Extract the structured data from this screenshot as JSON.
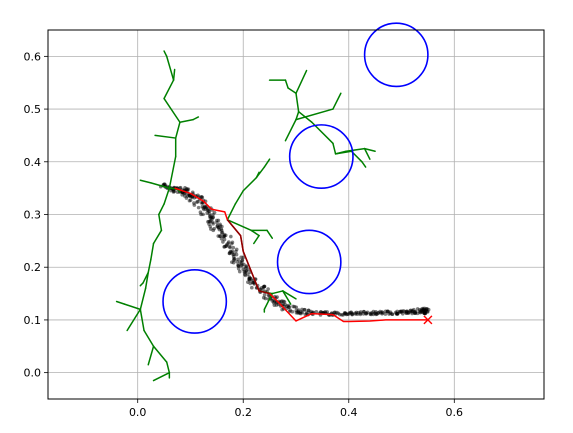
{
  "chart_data": {
    "type": "scatter",
    "title": "",
    "xlabel": "",
    "ylabel": "",
    "xlim": [
      -0.17,
      0.77
    ],
    "ylim": [
      -0.05,
      0.65
    ],
    "grid": true,
    "legend": "none",
    "x_ticks": [
      {
        "value": 0.0,
        "label": "0.0"
      },
      {
        "value": 0.2,
        "label": "0.2"
      },
      {
        "value": 0.4,
        "label": "0.4"
      },
      {
        "value": 0.6,
        "label": "0.6"
      }
    ],
    "y_ticks": [
      {
        "value": 0.0,
        "label": "0.0"
      },
      {
        "value": 0.1,
        "label": "0.1"
      },
      {
        "value": 0.2,
        "label": "0.2"
      },
      {
        "value": 0.3,
        "label": "0.3"
      },
      {
        "value": 0.4,
        "label": "0.4"
      },
      {
        "value": 0.5,
        "label": "0.5"
      },
      {
        "value": 0.6,
        "label": "0.6"
      }
    ],
    "colors": {
      "obstacle": "#0000ff",
      "tree": "#008000",
      "path": "#ff0000",
      "path_dark": "#8b0000",
      "particles": "#000000",
      "goal": "#ff0000",
      "grid": "#b0b0b0"
    },
    "obstacles": [
      {
        "x": 0.108,
        "y": 0.135,
        "r": 0.06
      },
      {
        "x": 0.325,
        "y": 0.21,
        "r": 0.06
      },
      {
        "x": 0.348,
        "y": 0.41,
        "r": 0.06
      },
      {
        "x": 0.49,
        "y": 0.603,
        "r": 0.06
      }
    ],
    "tree_edges": [
      [
        [
          0.06,
          0.35
        ],
        [
          0.075,
          0.348
        ]
      ],
      [
        [
          0.075,
          0.348
        ],
        [
          0.08,
          0.343
        ]
      ],
      [
        [
          0.06,
          0.35
        ],
        [
          0.072,
          0.41
        ]
      ],
      [
        [
          0.072,
          0.41
        ],
        [
          0.072,
          0.445
        ]
      ],
      [
        [
          0.072,
          0.445
        ],
        [
          0.033,
          0.45
        ]
      ],
      [
        [
          0.072,
          0.445
        ],
        [
          0.08,
          0.475
        ]
      ],
      [
        [
          0.08,
          0.475
        ],
        [
          0.105,
          0.48
        ]
      ],
      [
        [
          0.105,
          0.48
        ],
        [
          0.115,
          0.485
        ]
      ],
      [
        [
          0.08,
          0.475
        ],
        [
          0.05,
          0.52
        ]
      ],
      [
        [
          0.05,
          0.52
        ],
        [
          0.068,
          0.555
        ]
      ],
      [
        [
          0.068,
          0.555
        ],
        [
          0.07,
          0.575
        ]
      ],
      [
        [
          0.068,
          0.555
        ],
        [
          0.055,
          0.6
        ]
      ],
      [
        [
          0.055,
          0.6
        ],
        [
          0.05,
          0.61
        ]
      ],
      [
        [
          0.06,
          0.35
        ],
        [
          0.025,
          0.36
        ]
      ],
      [
        [
          0.025,
          0.36
        ],
        [
          0.005,
          0.365
        ]
      ],
      [
        [
          0.06,
          0.35
        ],
        [
          0.05,
          0.32
        ]
      ],
      [
        [
          0.05,
          0.32
        ],
        [
          0.04,
          0.3
        ]
      ],
      [
        [
          0.04,
          0.3
        ],
        [
          0.045,
          0.27
        ]
      ],
      [
        [
          0.045,
          0.27
        ],
        [
          0.03,
          0.245
        ]
      ],
      [
        [
          0.03,
          0.245
        ],
        [
          0.025,
          0.215
        ]
      ],
      [
        [
          0.025,
          0.215
        ],
        [
          0.02,
          0.19
        ]
      ],
      [
        [
          0.02,
          0.19
        ],
        [
          0.01,
          0.17
        ]
      ],
      [
        [
          0.01,
          0.17
        ],
        [
          0.005,
          0.165
        ]
      ],
      [
        [
          0.02,
          0.19
        ],
        [
          0.015,
          0.16
        ]
      ],
      [
        [
          0.015,
          0.16
        ],
        [
          0.005,
          0.12
        ]
      ],
      [
        [
          0.005,
          0.12
        ],
        [
          -0.025,
          0.13
        ]
      ],
      [
        [
          -0.025,
          0.13
        ],
        [
          -0.04,
          0.135
        ]
      ],
      [
        [
          0.005,
          0.12
        ],
        [
          -0.02,
          0.08
        ]
      ],
      [
        [
          0.005,
          0.12
        ],
        [
          0.012,
          0.08
        ]
      ],
      [
        [
          0.012,
          0.08
        ],
        [
          0.03,
          0.05
        ]
      ],
      [
        [
          0.03,
          0.05
        ],
        [
          0.02,
          0.015
        ]
      ],
      [
        [
          0.03,
          0.05
        ],
        [
          0.055,
          0.02
        ]
      ],
      [
        [
          0.055,
          0.02
        ],
        [
          0.06,
          0.0
        ]
      ],
      [
        [
          0.06,
          0.0
        ],
        [
          0.03,
          -0.015
        ]
      ],
      [
        [
          0.06,
          0.0
        ],
        [
          0.06,
          -0.01
        ]
      ],
      [
        [
          0.17,
          0.29
        ],
        [
          0.185,
          0.32
        ]
      ],
      [
        [
          0.185,
          0.32
        ],
        [
          0.2,
          0.345
        ]
      ],
      [
        [
          0.2,
          0.345
        ],
        [
          0.225,
          0.37
        ]
      ],
      [
        [
          0.225,
          0.37
        ],
        [
          0.24,
          0.39
        ]
      ],
      [
        [
          0.24,
          0.39
        ],
        [
          0.25,
          0.405
        ]
      ],
      [
        [
          0.225,
          0.37
        ],
        [
          0.23,
          0.38
        ]
      ],
      [
        [
          0.17,
          0.29
        ],
        [
          0.215,
          0.27
        ]
      ],
      [
        [
          0.215,
          0.27
        ],
        [
          0.245,
          0.27
        ]
      ],
      [
        [
          0.245,
          0.27
        ],
        [
          0.255,
          0.255
        ]
      ],
      [
        [
          0.215,
          0.27
        ],
        [
          0.23,
          0.26
        ]
      ],
      [
        [
          0.23,
          0.26
        ],
        [
          0.22,
          0.245
        ]
      ],
      [
        [
          0.23,
          0.155
        ],
        [
          0.255,
          0.15
        ]
      ],
      [
        [
          0.255,
          0.15
        ],
        [
          0.275,
          0.155
        ]
      ],
      [
        [
          0.275,
          0.155
        ],
        [
          0.29,
          0.13
        ]
      ],
      [
        [
          0.275,
          0.155
        ],
        [
          0.3,
          0.14
        ]
      ],
      [
        [
          0.255,
          0.15
        ],
        [
          0.24,
          0.12
        ]
      ],
      [
        [
          0.24,
          0.12
        ],
        [
          0.24,
          0.115
        ]
      ],
      [
        [
          0.25,
          0.555
        ],
        [
          0.28,
          0.555
        ]
      ],
      [
        [
          0.28,
          0.555
        ],
        [
          0.285,
          0.54
        ]
      ],
      [
        [
          0.285,
          0.54
        ],
        [
          0.3,
          0.53
        ]
      ],
      [
        [
          0.3,
          0.53
        ],
        [
          0.32,
          0.573
        ]
      ],
      [
        [
          0.3,
          0.53
        ],
        [
          0.305,
          0.495
        ]
      ],
      [
        [
          0.305,
          0.495
        ],
        [
          0.3,
          0.48
        ]
      ],
      [
        [
          0.3,
          0.48
        ],
        [
          0.28,
          0.44
        ]
      ],
      [
        [
          0.3,
          0.48
        ],
        [
          0.37,
          0.5
        ]
      ],
      [
        [
          0.37,
          0.5
        ],
        [
          0.385,
          0.53
        ]
      ],
      [
        [
          0.305,
          0.495
        ],
        [
          0.33,
          0.475
        ]
      ],
      [
        [
          0.33,
          0.475
        ],
        [
          0.37,
          0.435
        ]
      ],
      [
        [
          0.37,
          0.435
        ],
        [
          0.375,
          0.415
        ]
      ],
      [
        [
          0.375,
          0.415
        ],
        [
          0.395,
          0.42
        ]
      ],
      [
        [
          0.395,
          0.42
        ],
        [
          0.43,
          0.425
        ]
      ],
      [
        [
          0.43,
          0.425
        ],
        [
          0.45,
          0.42
        ]
      ],
      [
        [
          0.375,
          0.415
        ],
        [
          0.405,
          0.42
        ]
      ],
      [
        [
          0.405,
          0.42
        ],
        [
          0.425,
          0.4
        ]
      ],
      [
        [
          0.425,
          0.4
        ],
        [
          0.432,
          0.39
        ]
      ],
      [
        [
          0.43,
          0.425
        ],
        [
          0.44,
          0.405
        ]
      ]
    ],
    "path": [
      [
        0.55,
        0.1
      ],
      [
        0.5,
        0.1
      ],
      [
        0.47,
        0.1
      ],
      [
        0.44,
        0.098
      ],
      [
        0.4,
        0.097
      ],
      [
        0.39,
        0.097
      ],
      [
        0.37,
        0.11
      ],
      [
        0.33,
        0.112
      ],
      [
        0.3,
        0.098
      ],
      [
        0.27,
        0.13
      ],
      [
        0.25,
        0.15
      ],
      [
        0.23,
        0.155
      ],
      [
        0.2,
        0.23
      ],
      [
        0.195,
        0.26
      ],
      [
        0.17,
        0.29
      ],
      [
        0.165,
        0.305
      ],
      [
        0.14,
        0.31
      ],
      [
        0.125,
        0.325
      ],
      [
        0.1,
        0.34
      ],
      [
        0.085,
        0.345
      ],
      [
        0.07,
        0.35
      ]
    ],
    "path_dark_segment": [
      [
        0.17,
        0.29
      ],
      [
        0.195,
        0.26
      ],
      [
        0.2,
        0.23
      ],
      [
        0.23,
        0.155
      ],
      [
        0.25,
        0.15
      ]
    ],
    "goal": {
      "x": 0.55,
      "y": 0.1
    },
    "particle_band": [
      [
        0.045,
        0.355,
        0.005
      ],
      [
        0.07,
        0.348,
        0.006
      ],
      [
        0.09,
        0.342,
        0.008
      ],
      [
        0.11,
        0.332,
        0.012
      ],
      [
        0.125,
        0.315,
        0.014
      ],
      [
        0.14,
        0.295,
        0.014
      ],
      [
        0.155,
        0.27,
        0.012
      ],
      [
        0.17,
        0.245,
        0.012
      ],
      [
        0.185,
        0.22,
        0.012
      ],
      [
        0.2,
        0.195,
        0.011
      ],
      [
        0.22,
        0.17,
        0.01
      ],
      [
        0.245,
        0.15,
        0.009
      ],
      [
        0.27,
        0.13,
        0.008
      ],
      [
        0.3,
        0.118,
        0.006
      ],
      [
        0.33,
        0.113,
        0.004
      ],
      [
        0.37,
        0.112,
        0.003
      ],
      [
        0.41,
        0.113,
        0.003
      ],
      [
        0.45,
        0.113,
        0.003
      ],
      [
        0.49,
        0.114,
        0.003
      ],
      [
        0.515,
        0.115,
        0.003
      ],
      [
        0.54,
        0.117,
        0.005
      ],
      [
        0.55,
        0.117,
        0.006
      ]
    ]
  }
}
